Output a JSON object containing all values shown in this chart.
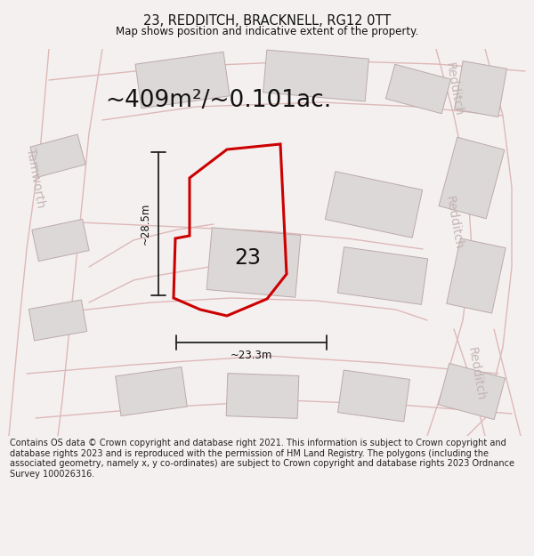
{
  "title": "23, REDDITCH, BRACKNELL, RG12 0TT",
  "subtitle": "Map shows position and indicative extent of the property.",
  "area_text": "~409m²/~0.101ac.",
  "label_number": "23",
  "dim_horizontal": "~23.3m",
  "dim_vertical": "~28.5m",
  "footer": "Contains OS data © Crown copyright and database right 2021. This information is subject to Crown copyright and database rights 2023 and is reproduced with the permission of HM Land Registry. The polygons (including the associated geometry, namely x, y co-ordinates) are subject to Crown copyright and database rights 2023 Ordnance Survey 100026316.",
  "map_bg": "#f0ecec",
  "building_color": "#ddd8d8",
  "building_edge": "#bbaaaa",
  "road_edge_color": "#ddb8b8",
  "plot_edge_color": "#cc0000",
  "dim_color": "#222222",
  "title_fontsize": 10.5,
  "subtitle_fontsize": 8.5,
  "area_fontsize": 19,
  "label_fontsize": 17,
  "dim_fontsize": 8.5,
  "footer_fontsize": 7.0,
  "street_label_color": "#c0b0b0",
  "street_label_fontsize": 10
}
